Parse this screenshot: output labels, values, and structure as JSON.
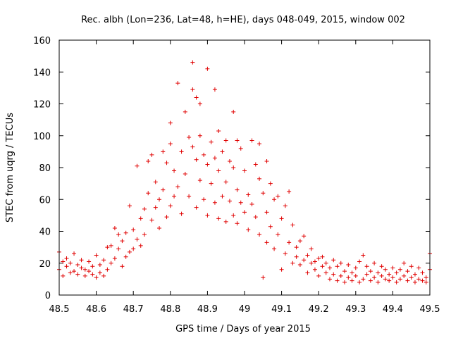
{
  "chart_data": {
    "type": "scatter",
    "title": "Rec. albh (Lon=236, Lat=48, h=HE), days 048-049, 2015, window 002",
    "xlabel": "GPS time / Days of year 2015",
    "ylabel": "STEC from uqrg / TECUs",
    "xlim": [
      48.5,
      49.5
    ],
    "ylim": [
      0,
      160
    ],
    "x_ticks": [
      48.5,
      48.6,
      48.7,
      48.8,
      48.9,
      49.0,
      49.1,
      49.2,
      49.3,
      49.4,
      49.5
    ],
    "x_tick_labels": [
      "48.5",
      "48.6",
      "48.7",
      "48.8",
      "48.9",
      "49",
      "49.1",
      "49.2",
      "49.3",
      "49.4",
      "49.5"
    ],
    "y_ticks": [
      0,
      20,
      40,
      60,
      80,
      100,
      120,
      140,
      160
    ],
    "y_tick_labels": [
      "0",
      "20",
      "40",
      "60",
      "80",
      "100",
      "120",
      "140",
      "160"
    ],
    "grid": false,
    "marker": "+",
    "marker_color": "#e00000",
    "series": [
      {
        "name": "STEC",
        "points": [
          [
            48.5,
            27
          ],
          [
            48.5,
            16
          ],
          [
            48.51,
            12
          ],
          [
            48.51,
            21
          ],
          [
            48.52,
            23
          ],
          [
            48.52,
            18
          ],
          [
            48.53,
            14
          ],
          [
            48.53,
            20
          ],
          [
            48.54,
            26
          ],
          [
            48.54,
            15
          ],
          [
            48.55,
            13
          ],
          [
            48.55,
            19
          ],
          [
            48.56,
            22
          ],
          [
            48.56,
            17
          ],
          [
            48.57,
            12
          ],
          [
            48.57,
            16
          ],
          [
            48.58,
            21
          ],
          [
            48.58,
            15
          ],
          [
            48.59,
            18
          ],
          [
            48.59,
            13
          ],
          [
            48.6,
            11
          ],
          [
            48.6,
            25
          ],
          [
            48.61,
            14
          ],
          [
            48.61,
            19
          ],
          [
            48.62,
            12
          ],
          [
            48.62,
            22
          ],
          [
            48.63,
            30
          ],
          [
            48.63,
            16
          ],
          [
            48.64,
            31
          ],
          [
            48.64,
            20
          ],
          [
            48.65,
            42
          ],
          [
            48.65,
            23
          ],
          [
            48.66,
            29
          ],
          [
            48.66,
            38
          ],
          [
            48.67,
            18
          ],
          [
            48.67,
            34
          ],
          [
            48.68,
            24
          ],
          [
            48.68,
            39
          ],
          [
            48.69,
            27
          ],
          [
            48.69,
            56
          ],
          [
            48.7,
            41
          ],
          [
            48.7,
            29
          ],
          [
            48.71,
            81
          ],
          [
            48.71,
            35
          ],
          [
            48.72,
            48
          ],
          [
            48.72,
            31
          ],
          [
            48.73,
            54
          ],
          [
            48.73,
            38
          ],
          [
            48.74,
            84
          ],
          [
            48.74,
            64
          ],
          [
            48.75,
            88
          ],
          [
            48.75,
            47
          ],
          [
            48.76,
            71
          ],
          [
            48.76,
            55
          ],
          [
            48.77,
            42
          ],
          [
            48.77,
            60
          ],
          [
            48.78,
            90
          ],
          [
            48.78,
            66
          ],
          [
            48.79,
            83
          ],
          [
            48.79,
            49
          ],
          [
            48.8,
            108
          ],
          [
            48.8,
            95
          ],
          [
            48.8,
            56
          ],
          [
            48.81,
            78
          ],
          [
            48.81,
            62
          ],
          [
            48.82,
            133
          ],
          [
            48.82,
            68
          ],
          [
            48.83,
            90
          ],
          [
            48.83,
            51
          ],
          [
            48.84,
            115
          ],
          [
            48.84,
            76
          ],
          [
            48.85,
            99
          ],
          [
            48.85,
            62
          ],
          [
            48.86,
            146
          ],
          [
            48.86,
            93
          ],
          [
            48.86,
            129
          ],
          [
            48.87,
            124
          ],
          [
            48.87,
            85
          ],
          [
            48.87,
            55
          ],
          [
            48.88,
            100
          ],
          [
            48.88,
            120
          ],
          [
            48.88,
            72
          ],
          [
            48.89,
            88
          ],
          [
            48.89,
            60
          ],
          [
            48.9,
            142
          ],
          [
            48.9,
            82
          ],
          [
            48.9,
            50
          ],
          [
            48.91,
            96
          ],
          [
            48.91,
            70
          ],
          [
            48.92,
            129
          ],
          [
            48.92,
            86
          ],
          [
            48.92,
            58
          ],
          [
            48.93,
            103
          ],
          [
            48.93,
            78
          ],
          [
            48.93,
            48
          ],
          [
            48.94,
            90
          ],
          [
            48.94,
            62
          ],
          [
            48.95,
            97
          ],
          [
            48.95,
            71
          ],
          [
            48.95,
            46
          ],
          [
            48.96,
            84
          ],
          [
            48.96,
            59
          ],
          [
            48.97,
            115
          ],
          [
            48.97,
            80
          ],
          [
            48.97,
            50
          ],
          [
            48.98,
            97
          ],
          [
            48.98,
            66
          ],
          [
            48.98,
            45
          ],
          [
            48.99,
            92
          ],
          [
            48.99,
            58
          ],
          [
            49.0,
            78
          ],
          [
            49.0,
            52
          ],
          [
            49.01,
            63
          ],
          [
            49.01,
            41
          ],
          [
            49.02,
            97
          ],
          [
            49.02,
            57
          ],
          [
            49.03,
            82
          ],
          [
            49.03,
            49
          ],
          [
            49.04,
            95
          ],
          [
            49.04,
            73
          ],
          [
            49.04,
            38
          ],
          [
            49.05,
            11
          ],
          [
            49.05,
            64
          ],
          [
            49.06,
            84
          ],
          [
            49.06,
            52
          ],
          [
            49.06,
            33
          ],
          [
            49.07,
            70
          ],
          [
            49.07,
            43
          ],
          [
            49.08,
            60
          ],
          [
            49.08,
            29
          ],
          [
            49.09,
            62
          ],
          [
            49.09,
            38
          ],
          [
            49.1,
            16
          ],
          [
            49.1,
            48
          ],
          [
            49.11,
            56
          ],
          [
            49.11,
            26
          ],
          [
            49.12,
            65
          ],
          [
            49.12,
            33
          ],
          [
            49.13,
            20
          ],
          [
            49.13,
            44
          ],
          [
            49.14,
            30
          ],
          [
            49.14,
            24
          ],
          [
            49.15,
            34
          ],
          [
            49.15,
            19
          ],
          [
            49.16,
            37
          ],
          [
            49.16,
            22
          ],
          [
            49.17,
            25
          ],
          [
            49.17,
            14
          ],
          [
            49.18,
            20
          ],
          [
            49.18,
            29
          ],
          [
            49.19,
            16
          ],
          [
            49.19,
            21
          ],
          [
            49.2,
            23
          ],
          [
            49.2,
            12
          ],
          [
            49.21,
            18
          ],
          [
            49.21,
            24
          ],
          [
            49.22,
            14
          ],
          [
            49.22,
            20
          ],
          [
            49.23,
            10
          ],
          [
            49.23,
            17
          ],
          [
            49.24,
            22
          ],
          [
            49.24,
            13
          ],
          [
            49.25,
            9
          ],
          [
            49.25,
            18
          ],
          [
            49.26,
            12
          ],
          [
            49.26,
            20
          ],
          [
            49.27,
            8
          ],
          [
            49.27,
            15
          ],
          [
            49.28,
            11
          ],
          [
            49.28,
            19
          ],
          [
            49.29,
            9
          ],
          [
            49.29,
            14
          ],
          [
            49.3,
            12
          ],
          [
            49.3,
            17
          ],
          [
            49.31,
            8
          ],
          [
            49.31,
            21
          ],
          [
            49.32,
            10
          ],
          [
            49.32,
            25
          ],
          [
            49.33,
            13
          ],
          [
            49.33,
            18
          ],
          [
            49.34,
            9
          ],
          [
            49.34,
            15
          ],
          [
            49.35,
            11
          ],
          [
            49.35,
            20
          ],
          [
            49.36,
            8
          ],
          [
            49.36,
            14
          ],
          [
            49.37,
            12
          ],
          [
            49.37,
            18
          ],
          [
            49.38,
            10
          ],
          [
            49.38,
            16
          ],
          [
            49.39,
            9
          ],
          [
            49.39,
            13
          ],
          [
            49.4,
            11
          ],
          [
            49.4,
            17
          ],
          [
            49.41,
            8
          ],
          [
            49.41,
            14
          ],
          [
            49.42,
            10
          ],
          [
            49.42,
            16
          ],
          [
            49.43,
            12
          ],
          [
            49.43,
            20
          ],
          [
            49.44,
            9
          ],
          [
            49.44,
            15
          ],
          [
            49.45,
            11
          ],
          [
            49.45,
            18
          ],
          [
            49.46,
            8
          ],
          [
            49.46,
            13
          ],
          [
            49.47,
            10
          ],
          [
            49.47,
            17
          ],
          [
            49.48,
            9
          ],
          [
            49.48,
            14
          ],
          [
            49.49,
            11
          ],
          [
            49.49,
            8
          ],
          [
            49.5,
            26
          ],
          [
            49.5,
            16
          ]
        ]
      }
    ]
  }
}
